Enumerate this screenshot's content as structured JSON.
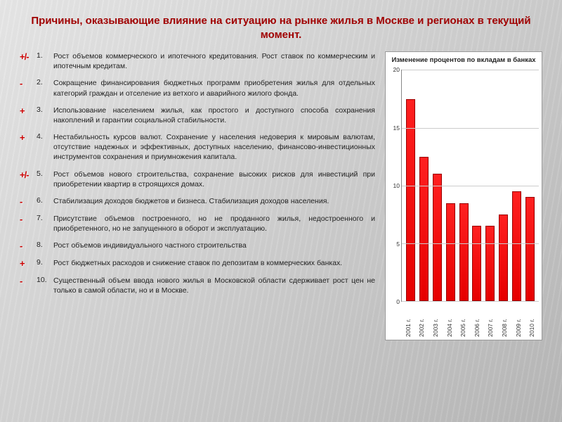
{
  "title": "Причины, оказывающие влияние на ситуацию на рынке жилья в Москве и регионах  в текущий момент.",
  "items": [
    {
      "sign": "+/-",
      "num": "1.",
      "text": "Рост объемов коммерческого и ипотечного кредитования.                Рост ставок по коммерческим и ипотечным кредитам."
    },
    {
      "sign": "-",
      "num": "2.",
      "text": "Сокращение финансирования бюджетных программ приобретения жилья для отдельных категорий граждан и отселение из ветхого и аварийного жилого фонда."
    },
    {
      "sign": "+",
      "num": "3.",
      "text": "Использование населением жилья, как простого и доступного способа сохранения накоплений и гарантии социальной стабильности."
    },
    {
      "sign": "+",
      "num": "4.",
      "text": "Нестабильность курсов валют. Сохранение у населения недоверия к мировым валютам, отсутствие надежных и эффективных, доступных населению, финансово-инвестиционных инструментов сохранения и приумножения капитала."
    },
    {
      "sign": "+/-",
      "num": "5.",
      "text": "Рост объемов нового строительства, сохранение высоких рисков для инвестиций при   приобретении квартир в строящихся домах."
    },
    {
      "sign": "-",
      "num": "6.",
      "text": "Стабилизация доходов бюджетов и бизнеса. Стабилизация доходов населения."
    },
    {
      "sign": "-",
      "num": "7.",
      "text": "Присутствие объемов построенного, но не проданного жилья, недостроенного и приобретенного, но не запущенного в оборот и эксплуатацию."
    },
    {
      "sign": "-",
      "num": "8.",
      "text": "Рост объемов индивидуального частного строительства"
    },
    {
      "sign": "+",
      "num": "9.",
      "text": "Рост бюджетных расходов и снижение ставок по депозитам в коммерческих банках."
    },
    {
      "sign": "-",
      "num": "10.",
      "text": "Существенный объем ввода нового жилья в Московской области сдерживает рост цен не только в самой области, но и в Москве."
    }
  ],
  "chart": {
    "type": "bar",
    "title": "Изменение процентов по вкладам в банках",
    "categories": [
      "2001 г.",
      "2002 г.",
      "2003 г.",
      "2004 г.",
      "2005 г.",
      "2006 г.",
      "2007 г.",
      "2008 г.",
      "2009 г.",
      "2010 г."
    ],
    "values": [
      17.5,
      12.5,
      11.0,
      8.5,
      8.5,
      6.5,
      6.5,
      7.5,
      9.5,
      9.0
    ],
    "bar_color": "#e60000",
    "bar_border": "#990000",
    "ylim": [
      0,
      20
    ],
    "yticks": [
      0,
      5,
      10,
      15,
      20
    ],
    "background_color": "#ffffff",
    "grid_color": "#cccccc",
    "title_fontsize": 9.5,
    "tick_fontsize": 8.5
  }
}
